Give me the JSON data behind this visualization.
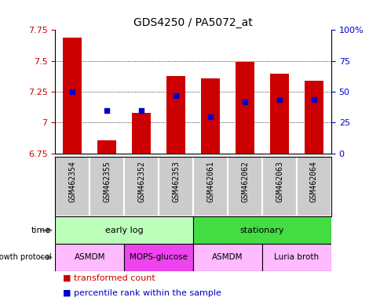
{
  "title": "GDS4250 / PA5072_at",
  "samples": [
    "GSM462354",
    "GSM462355",
    "GSM462352",
    "GSM462353",
    "GSM462061",
    "GSM462062",
    "GSM462063",
    "GSM462064"
  ],
  "transformed_counts": [
    7.69,
    6.86,
    7.08,
    7.38,
    7.36,
    7.49,
    7.4,
    7.34
  ],
  "percentile_ranks": [
    50,
    35,
    35,
    47,
    30,
    42,
    44,
    44
  ],
  "ylim_left": [
    6.75,
    7.75
  ],
  "ylim_right": [
    0,
    100
  ],
  "yticks_left": [
    6.75,
    7.0,
    7.25,
    7.5,
    7.75
  ],
  "yticks_right": [
    0,
    25,
    50,
    75,
    100
  ],
  "ytick_labels_left": [
    "6.75",
    "7",
    "7.25",
    "7.5",
    "7.75"
  ],
  "ytick_labels_right": [
    "0",
    "25",
    "50",
    "75",
    "100%"
  ],
  "bar_color": "#cc0000",
  "dot_color": "#0000cc",
  "bar_bottom": 6.75,
  "time_labels": [
    [
      "early log",
      0,
      4
    ],
    [
      "stationary",
      4,
      8
    ]
  ],
  "time_colors": [
    "#bbffbb",
    "#44dd44"
  ],
  "growth_protocol_labels": [
    [
      "ASMDM",
      0,
      2
    ],
    [
      "MOPS-glucose",
      2,
      4
    ],
    [
      "ASMDM",
      4,
      6
    ],
    [
      "Luria broth",
      6,
      8
    ]
  ],
  "growth_protocol_colors": [
    "#ffbbff",
    "#ee44ee",
    "#ffbbff",
    "#ffbbff"
  ],
  "background_color": "#ffffff",
  "plot_bg_color": "#ffffff",
  "label_color_left": "#cc0000",
  "label_color_right": "#0000cc",
  "sample_bg_color": "#cccccc",
  "legend_tc_color": "#cc0000",
  "legend_pr_color": "#0000cc"
}
